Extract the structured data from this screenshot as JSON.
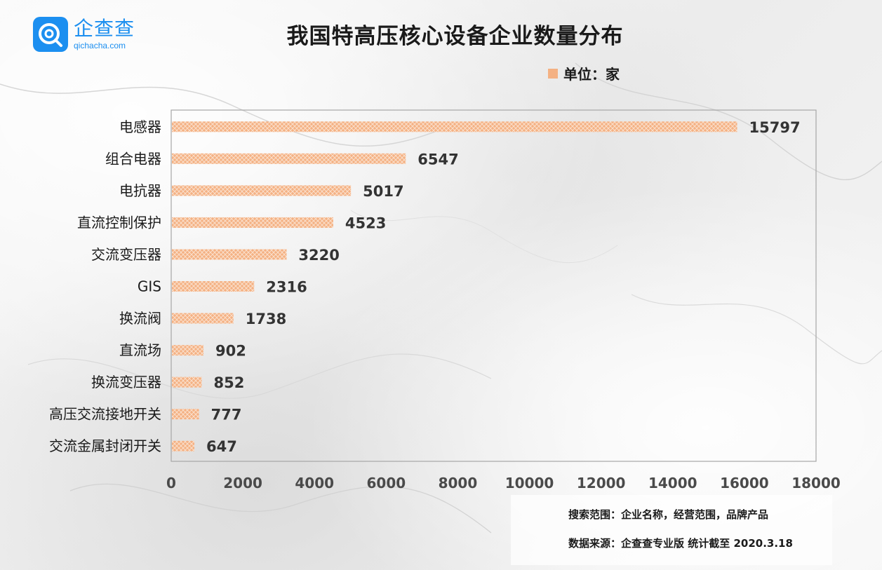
{
  "brand": {
    "name_cn": "企查查",
    "domain": "qichacha.com",
    "color": "#1c8ff0"
  },
  "chart_data": {
    "type": "bar",
    "orientation": "horizontal",
    "title": "我国特高压核心设备企业数量分布",
    "legend": "单位：家",
    "legend_position": "top-right",
    "categories": [
      "电感器",
      "组合电器",
      "电抗器",
      "直流控制保护",
      "交流变压器",
      "GIS",
      "换流阀",
      "直流场",
      "换流变压器",
      "高压交流接地开关",
      "交流金属封闭开关"
    ],
    "values": [
      15797,
      6547,
      5017,
      4523,
      3220,
      2316,
      1738,
      902,
      852,
      777,
      647
    ],
    "xlim": [
      0,
      18000
    ],
    "xticks": [
      0,
      2000,
      4000,
      6000,
      8000,
      10000,
      12000,
      14000,
      16000,
      18000
    ],
    "grid": false,
    "bar_color": "#f4b183",
    "bar_pattern": "crosshatch"
  },
  "footer": {
    "search_scope": "搜索范围：企业名称，经营范围，品牌产品",
    "data_source": "数据来源：企查查专业版  统计截至 2020.3.18"
  }
}
